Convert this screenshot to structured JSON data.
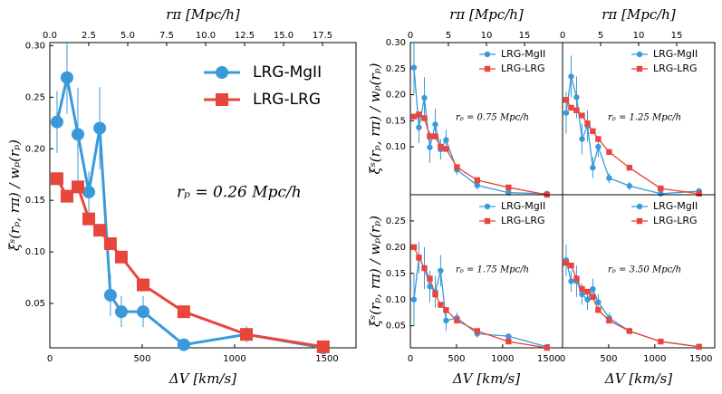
{
  "chart_data": [
    {
      "type": "line",
      "xlabel": "ΔV [km/s]",
      "x2label": "rπ [Mpc/h]",
      "ylabel": "ξˢ(rₚ, rπ) / wₚ(rₚ)",
      "annotation": "rₚ = 0.26 Mpc/h",
      "x": [
        39,
        93,
        152,
        211,
        270,
        328,
        387,
        505,
        725,
        1064,
        1480
      ],
      "series": [
        {
          "name": "LRG-MgII",
          "color": "#3a9ad9",
          "marker": "circle",
          "values": [
            0.226,
            0.269,
            0.214,
            0.158,
            0.22,
            0.058,
            0.042,
            0.042,
            0.01,
            0.02,
            0.007
          ],
          "errors": [
            0.03,
            0.035,
            0.045,
            0.02,
            0.04,
            0.02,
            0.015,
            0.015,
            0.005,
            0.008,
            0.003
          ]
        },
        {
          "name": "LRG-LRG",
          "color": "#e8453c",
          "marker": "square",
          "values": [
            0.171,
            0.154,
            0.163,
            0.132,
            0.121,
            0.108,
            0.095,
            0.068,
            0.042,
            0.02,
            0.008
          ]
        }
      ],
      "xlim": [
        0,
        1657
      ],
      "ylim": [
        0.007,
        0.303
      ],
      "x2lim": [
        0,
        19.65
      ],
      "xticks": [
        0,
        500,
        1000,
        1500
      ],
      "x2ticks": [
        {
          "value": 0,
          "label": "0.0"
        },
        {
          "value": 2.5,
          "label": "2.5"
        },
        {
          "value": 5,
          "label": "5.0"
        },
        {
          "value": 7.5,
          "label": "7.5"
        },
        {
          "value": 10,
          "label": "10.0"
        },
        {
          "value": 12.5,
          "label": "12.5"
        },
        {
          "value": 15,
          "label": "15.0"
        },
        {
          "value": 17.5,
          "label": "17.5"
        }
      ],
      "yticks": [
        {
          "value": 0.05,
          "label": "0.05"
        },
        {
          "value": 0.1,
          "label": "0.10"
        },
        {
          "value": 0.15,
          "label": "0.15"
        },
        {
          "value": 0.2,
          "label": "0.20"
        },
        {
          "value": 0.25,
          "label": "0.25"
        },
        {
          "value": 0.3,
          "label": "0.30"
        }
      ]
    },
    {
      "type": "line",
      "x2label": "rπ [Mpc/h]",
      "ylabel": "ξˢ(rₚ, rπ) / wₚ(rₚ)",
      "annotation": "rₚ = 0.75 Mpc/h",
      "x": [
        39,
        93,
        152,
        211,
        270,
        328,
        387,
        505,
        725,
        1064,
        1480
      ],
      "series": [
        {
          "name": "LRG-MgII",
          "color": "#3a9ad9",
          "marker": "circle",
          "values": [
            0.252,
            0.137,
            0.194,
            0.099,
            0.143,
            0.095,
            0.113,
            0.056,
            0.026,
            0.012,
            0.01
          ],
          "errors": [
            0.05,
            0.03,
            0.04,
            0.03,
            0.03,
            0.02,
            0.02,
            0.01,
            0.008,
            0.005,
            0.004
          ]
        },
        {
          "name": "LRG-LRG",
          "color": "#e8453c",
          "marker": "square",
          "values": [
            0.158,
            0.162,
            0.155,
            0.12,
            0.12,
            0.1,
            0.096,
            0.061,
            0.036,
            0.022,
            0.008
          ]
        }
      ],
      "xlim": [
        0,
        1650
      ],
      "ylim": [
        0.008,
        0.3
      ],
      "x2lim": [
        0,
        20
      ],
      "x2ticks": [
        0,
        5,
        10,
        15
      ],
      "yticks": [
        {
          "value": 0.1,
          "label": "0.10"
        },
        {
          "value": 0.15,
          "label": "0.15"
        },
        {
          "value": 0.2,
          "label": "0.20"
        },
        {
          "value": 0.25,
          "label": "0.25"
        },
        {
          "value": 0.3,
          "label": "0.30"
        }
      ]
    },
    {
      "type": "line",
      "x2label": "rπ [Mpc/h]",
      "annotation": "rₚ = 1.25 Mpc/h",
      "x": [
        39,
        93,
        152,
        211,
        270,
        328,
        387,
        505,
        725,
        1064,
        1480
      ],
      "series": [
        {
          "name": "LRG-MgII",
          "color": "#3a9ad9",
          "marker": "circle",
          "values": [
            0.165,
            0.235,
            0.195,
            0.115,
            0.14,
            0.06,
            0.1,
            0.04,
            0.025,
            0.01,
            0.015
          ],
          "errors": [
            0.04,
            0.04,
            0.04,
            0.03,
            0.03,
            0.02,
            0.02,
            0.01,
            0.008,
            0.005,
            0.004
          ]
        },
        {
          "name": "LRG-LRG",
          "color": "#e8453c",
          "marker": "square",
          "values": [
            0.19,
            0.175,
            0.17,
            0.16,
            0.145,
            0.13,
            0.115,
            0.09,
            0.06,
            0.02,
            0.01
          ]
        }
      ],
      "xlim": [
        0,
        1650
      ],
      "ylim": [
        0.008,
        0.3
      ],
      "x2lim": [
        0,
        20
      ],
      "x2ticks": [
        0,
        5,
        10,
        15
      ]
    },
    {
      "type": "line",
      "xlabel": "ΔV [km/s]",
      "ylabel": "ξˢ(rₚ, rπ) / wₚ(rₚ)",
      "annotation": "rₚ = 1.75 Mpc/h",
      "x": [
        39,
        93,
        152,
        211,
        270,
        328,
        387,
        505,
        725,
        1064,
        1480
      ],
      "series": [
        {
          "name": "LRG-MgII",
          "color": "#3a9ad9",
          "marker": "circle",
          "values": [
            0.1,
            0.18,
            0.16,
            0.125,
            0.115,
            0.155,
            0.06,
            0.065,
            0.035,
            0.03,
            0.01
          ],
          "errors": [
            0.05,
            0.03,
            0.04,
            0.03,
            0.03,
            0.03,
            0.02,
            0.01,
            0.008,
            0.005,
            0.004
          ]
        },
        {
          "name": "LRG-LRG",
          "color": "#e8453c",
          "marker": "square",
          "values": [
            0.2,
            0.18,
            0.16,
            0.14,
            0.11,
            0.09,
            0.08,
            0.06,
            0.04,
            0.02,
            0.008
          ]
        }
      ],
      "xlim": [
        0,
        1650
      ],
      "ylim": [
        0.008,
        0.3
      ],
      "xticks": [
        0,
        500,
        1000,
        1500
      ],
      "yticks": [
        {
          "value": 0.05,
          "label": "0.05"
        },
        {
          "value": 0.1,
          "label": "0.10"
        },
        {
          "value": 0.15,
          "label": "0.15"
        },
        {
          "value": 0.2,
          "label": "0.20"
        },
        {
          "value": 0.25,
          "label": "0.25"
        }
      ]
    },
    {
      "type": "line",
      "xlabel": "ΔV [km/s]",
      "annotation": "rₚ = 3.50 Mpc/h",
      "x": [
        39,
        93,
        152,
        211,
        270,
        328,
        387,
        505,
        725,
        1064,
        1480
      ],
      "series": [
        {
          "name": "LRG-MgII",
          "color": "#3a9ad9",
          "marker": "circle",
          "values": [
            0.175,
            0.135,
            0.135,
            0.11,
            0.1,
            0.12,
            0.095,
            0.065,
            0.04,
            0.02,
            0.01
          ],
          "errors": [
            0.03,
            0.02,
            0.03,
            0.02,
            0.02,
            0.02,
            0.015,
            0.01,
            0.006,
            0.004,
            0.003
          ]
        },
        {
          "name": "LRG-LRG",
          "color": "#e8453c",
          "marker": "square",
          "values": [
            0.17,
            0.165,
            0.14,
            0.12,
            0.115,
            0.105,
            0.08,
            0.06,
            0.04,
            0.02,
            0.01
          ]
        }
      ],
      "xlim": [
        0,
        1650
      ],
      "ylim": [
        0.008,
        0.3
      ],
      "xticks": [
        0,
        500,
        1000,
        1500
      ]
    }
  ]
}
